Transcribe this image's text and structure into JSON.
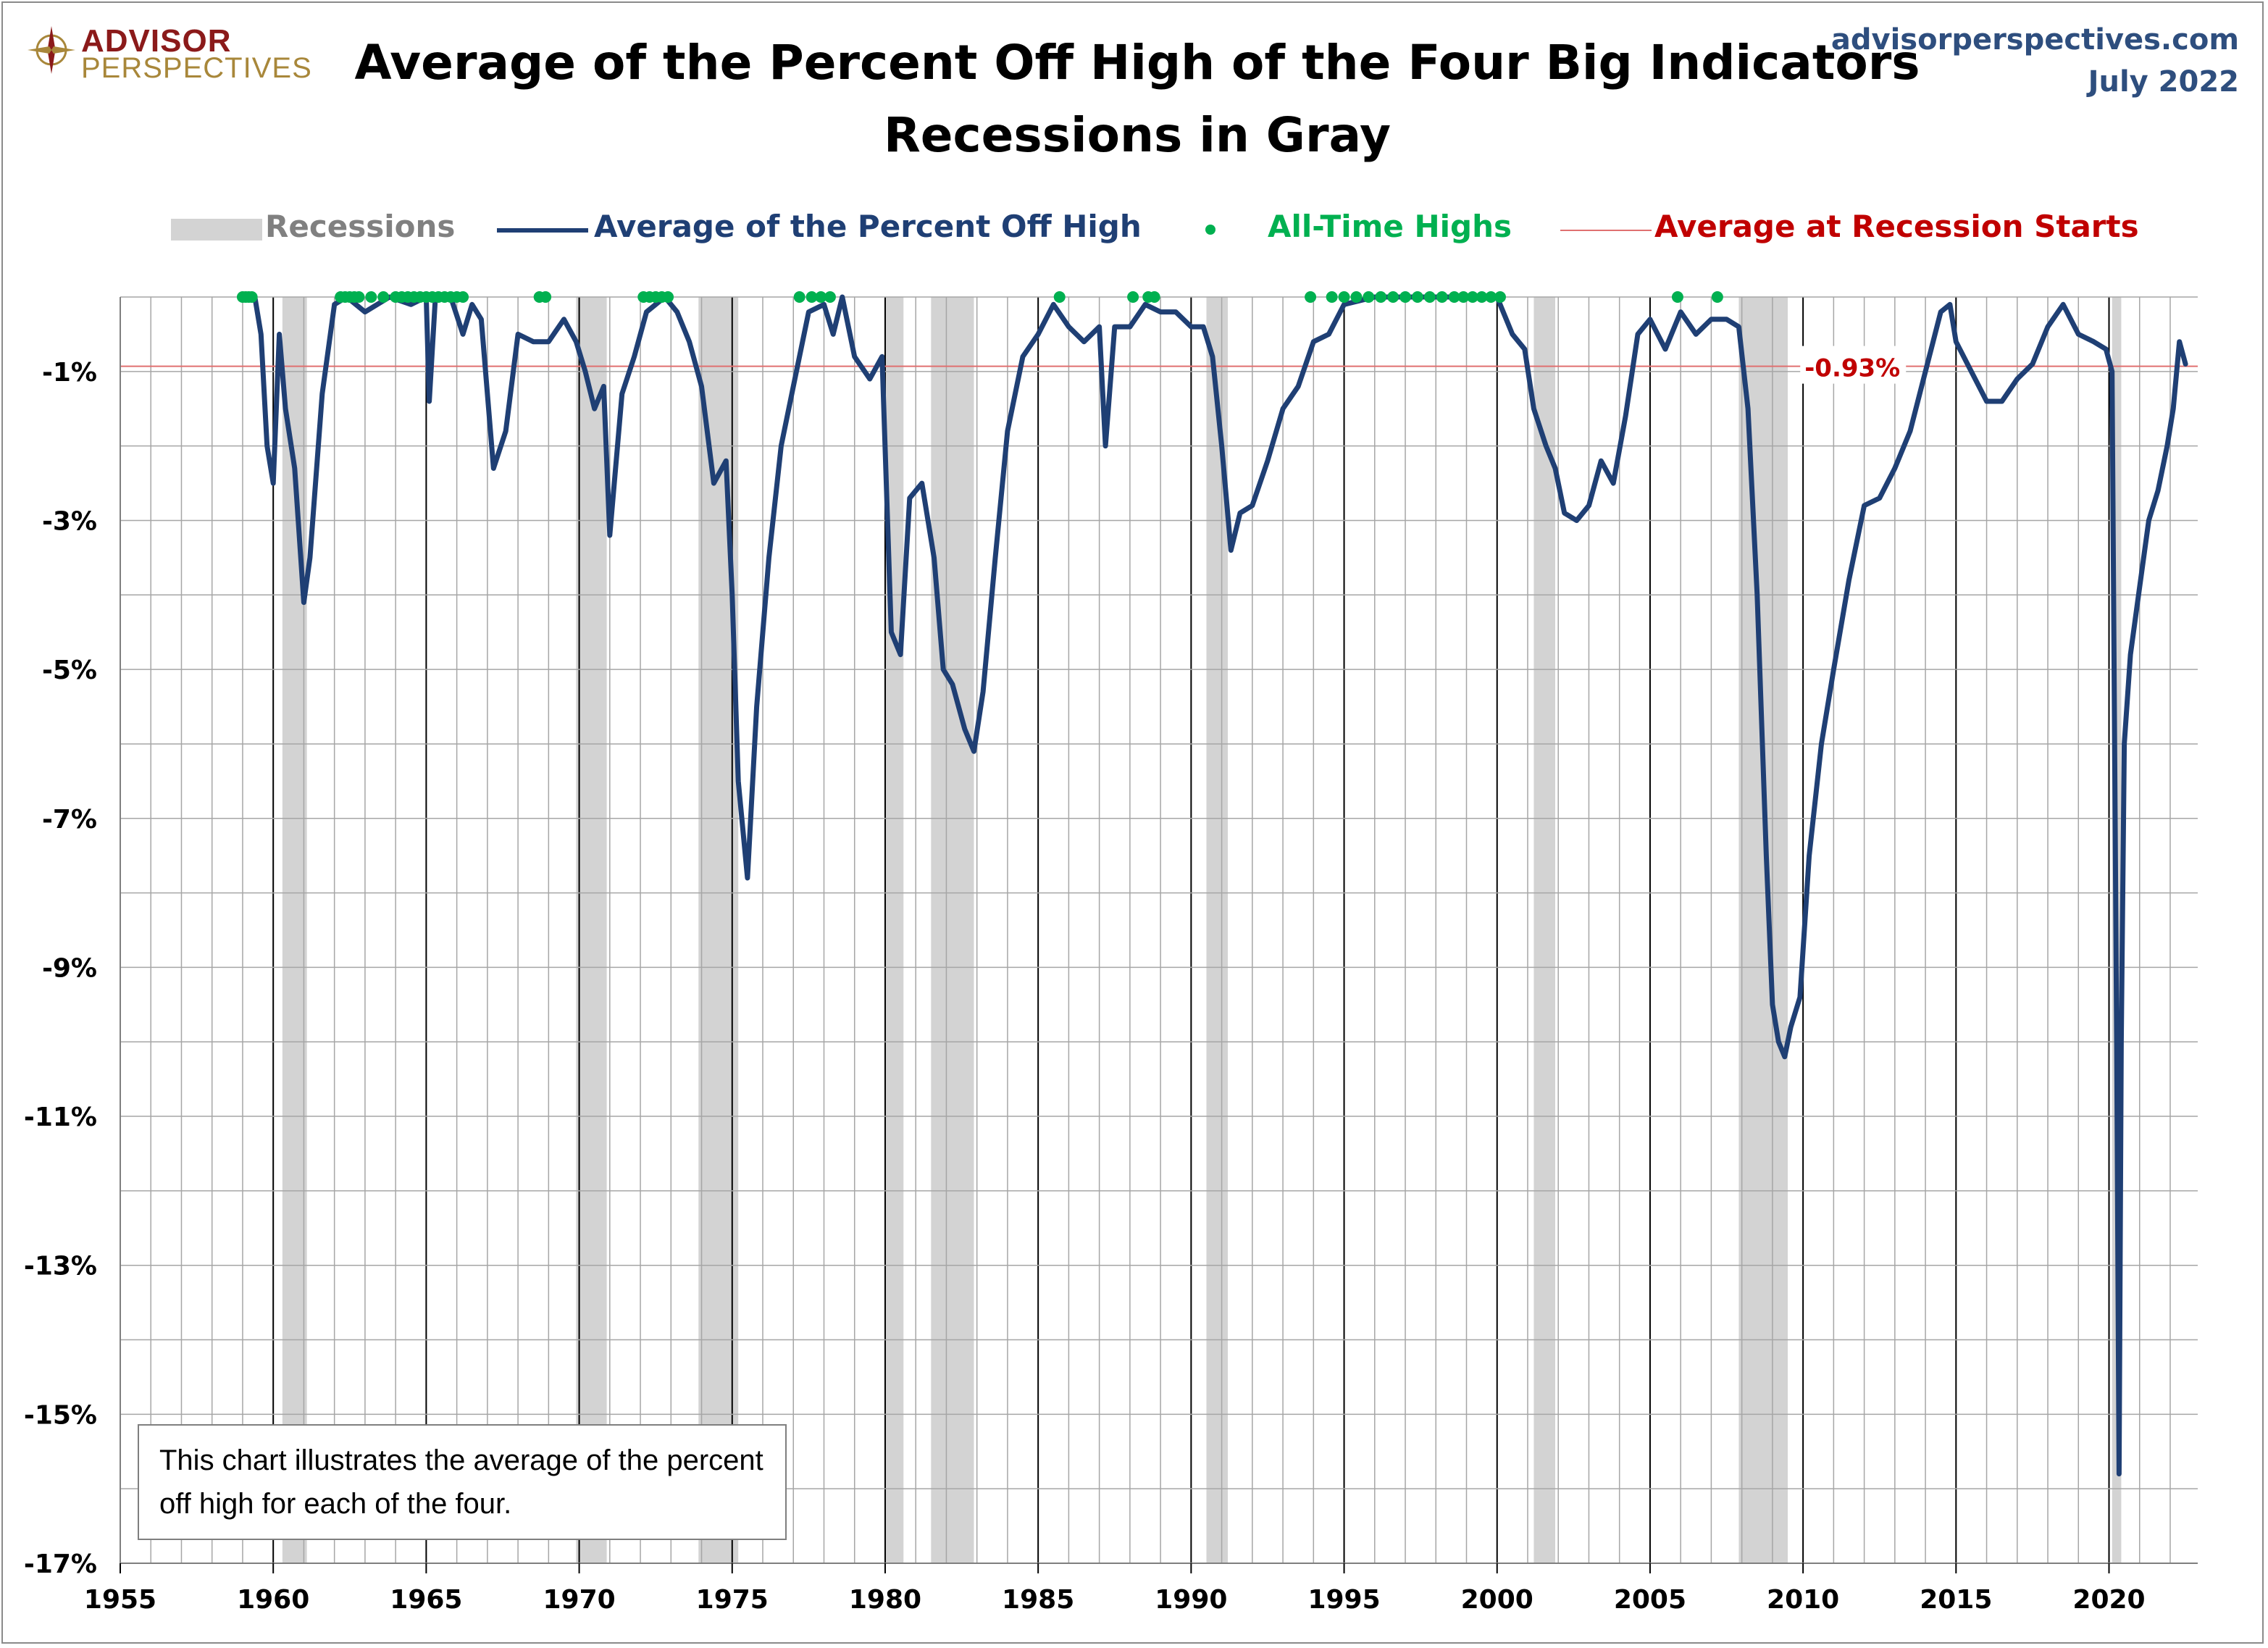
{
  "brand": {
    "logo_top": "ADVISOR",
    "logo_bottom": "PERSPECTIVES",
    "site": "advisorperspectives.com",
    "date": "July 2022"
  },
  "colors": {
    "line": "#1f3f74",
    "recession": "#d3d3d3",
    "highs": "#00b050",
    "avg_line": "#e07070",
    "avg_label": "#c00000",
    "grid": "#a6a6a6"
  },
  "chart_data": {
    "type": "line",
    "title": "Average of the Percent Off High of the Four Big Indicators",
    "subtitle": "Recessions in Gray",
    "xlabel": "",
    "ylabel": "",
    "xlim": [
      1955,
      2022.9
    ],
    "ylim": [
      -17,
      0
    ],
    "y_ticks": [
      -1,
      -3,
      -5,
      -7,
      -9,
      -11,
      -13,
      -15,
      -17
    ],
    "y_tick_labels": [
      "-1%",
      "-3%",
      "-5%",
      "-7%",
      "-9%",
      "-11%",
      "-13%",
      "-15%",
      "-17%"
    ],
    "x_ticks": [
      1955,
      1960,
      1965,
      1970,
      1975,
      1980,
      1985,
      1990,
      1995,
      2000,
      2005,
      2010,
      2015,
      2020
    ],
    "x_tick_labels": [
      "1955",
      "1960",
      "1965",
      "1970",
      "1975",
      "1980",
      "1985",
      "1990",
      "1995",
      "2000",
      "2005",
      "2010",
      "2015",
      "2020"
    ],
    "grid": true,
    "legend_position": "top",
    "legend": [
      "Recessions",
      "Average of the Percent Off High",
      "All-Time Highs",
      "Average at Recession Starts"
    ],
    "recessions": [
      [
        1960.3,
        1961.1
      ],
      [
        1969.9,
        1970.9
      ],
      [
        1973.9,
        1975.2
      ],
      [
        1980.0,
        1980.6
      ],
      [
        1981.5,
        1982.9
      ],
      [
        1990.5,
        1991.2
      ],
      [
        2001.2,
        2001.9
      ],
      [
        2007.9,
        2009.5
      ],
      [
        2020.1,
        2020.4
      ]
    ],
    "average_at_recession_starts": -0.93,
    "average_label": "-0.93%",
    "series": [
      {
        "name": "Average of the Percent Off High",
        "x": [
          1959.0,
          1959.4,
          1959.6,
          1959.8,
          1960.0,
          1960.2,
          1960.4,
          1960.7,
          1961.0,
          1961.2,
          1961.6,
          1962.0,
          1962.4,
          1963.0,
          1963.8,
          1964.5,
          1965.0,
          1965.1,
          1965.3,
          1965.8,
          1966.2,
          1966.5,
          1966.8,
          1967.2,
          1967.6,
          1968.0,
          1968.5,
          1969.0,
          1969.5,
          1969.9,
          1970.2,
          1970.5,
          1970.8,
          1971.0,
          1971.4,
          1971.8,
          1972.2,
          1972.8,
          1973.2,
          1973.6,
          1974.0,
          1974.4,
          1974.8,
          1975.0,
          1975.2,
          1975.5,
          1975.8,
          1976.2,
          1976.6,
          1977.0,
          1977.5,
          1978.0,
          1978.3,
          1978.6,
          1979.0,
          1979.5,
          1979.9,
          1980.2,
          1980.5,
          1980.8,
          1981.2,
          1981.6,
          1981.9,
          1982.2,
          1982.6,
          1982.9,
          1983.2,
          1983.6,
          1984.0,
          1984.5,
          1985.0,
          1985.5,
          1986.0,
          1986.5,
          1987.0,
          1987.2,
          1987.5,
          1988.0,
          1988.5,
          1989.0,
          1989.5,
          1990.0,
          1990.4,
          1990.7,
          1991.0,
          1991.3,
          1991.6,
          1992.0,
          1992.5,
          1993.0,
          1993.5,
          1994.0,
          1994.5,
          1995.0,
          1996.0,
          1997.0,
          1998.0,
          1999.0,
          2000.0,
          2000.5,
          2000.9,
          2001.2,
          2001.6,
          2001.9,
          2002.2,
          2002.6,
          2003.0,
          2003.4,
          2003.8,
          2004.2,
          2004.6,
          2005.0,
          2005.5,
          2006.0,
          2006.5,
          2007.0,
          2007.5,
          2007.9,
          2008.2,
          2008.5,
          2008.8,
          2009.0,
          2009.2,
          2009.4,
          2009.6,
          2009.9,
          2010.2,
          2010.6,
          2011.0,
          2011.5,
          2012.0,
          2012.5,
          2013.0,
          2013.5,
          2014.0,
          2014.5,
          2014.8,
          2015.0,
          2015.5,
          2016.0,
          2016.5,
          2017.0,
          2017.5,
          2018.0,
          2018.5,
          2019.0,
          2019.5,
          2019.9,
          2020.1,
          2020.25,
          2020.33,
          2020.4,
          2020.5,
          2020.7,
          2021.0,
          2021.3,
          2021.6,
          2021.9,
          2022.1,
          2022.3,
          2022.5
        ],
        "y": [
          0,
          0,
          -0.5,
          -2.0,
          -2.5,
          -0.5,
          -1.5,
          -2.3,
          -4.1,
          -3.5,
          -1.3,
          -0.1,
          0,
          -0.2,
          0,
          -0.1,
          0,
          -1.4,
          0,
          0,
          -0.5,
          -0.1,
          -0.3,
          -2.3,
          -1.8,
          -0.5,
          -0.6,
          -0.6,
          -0.3,
          -0.6,
          -1.0,
          -1.5,
          -1.2,
          -3.2,
          -1.3,
          -0.8,
          -0.2,
          0,
          -0.2,
          -0.6,
          -1.2,
          -2.5,
          -2.2,
          -4.0,
          -6.5,
          -7.8,
          -5.5,
          -3.5,
          -2.0,
          -1.2,
          -0.2,
          -0.1,
          -0.5,
          0,
          -0.8,
          -1.1,
          -0.8,
          -4.5,
          -4.8,
          -2.7,
          -2.5,
          -3.5,
          -5.0,
          -5.2,
          -5.8,
          -6.1,
          -5.3,
          -3.5,
          -1.8,
          -0.8,
          -0.5,
          -0.1,
          -0.4,
          -0.6,
          -0.4,
          -2.0,
          -0.4,
          -0.4,
          -0.1,
          -0.2,
          -0.2,
          -0.4,
          -0.4,
          -0.8,
          -2.0,
          -3.4,
          -2.9,
          -2.8,
          -2.2,
          -1.5,
          -1.2,
          -0.6,
          -0.5,
          -0.1,
          0,
          0,
          0,
          0,
          0,
          -0.5,
          -0.7,
          -1.5,
          -2.0,
          -2.3,
          -2.9,
          -3.0,
          -2.8,
          -2.2,
          -2.5,
          -1.6,
          -0.5,
          -0.3,
          -0.7,
          -0.2,
          -0.5,
          -0.3,
          -0.3,
          -0.4,
          -1.5,
          -4.0,
          -7.5,
          -9.5,
          -10.0,
          -10.2,
          -9.8,
          -9.4,
          -7.5,
          -6.0,
          -5.0,
          -3.8,
          -2.8,
          -2.7,
          -2.3,
          -1.8,
          -1.0,
          -0.2,
          -0.1,
          -0.6,
          -1.0,
          -1.4,
          -1.4,
          -1.1,
          -0.9,
          -0.4,
          -0.1,
          -0.5,
          -0.6,
          -0.7,
          -1.0,
          -10.0,
          -15.8,
          -10.0,
          -6.0,
          -4.8,
          -3.9,
          -3.0,
          -2.6,
          -2.0,
          -1.5,
          -0.6,
          -0.9
        ]
      },
      {
        "name": "All-Time Highs",
        "x": [
          1959.0,
          1959.1,
          1959.2,
          1959.3,
          1962.2,
          1962.35,
          1962.5,
          1962.65,
          1962.8,
          1963.2,
          1963.6,
          1964.0,
          1964.2,
          1964.4,
          1964.6,
          1964.8,
          1965.0,
          1965.2,
          1965.4,
          1965.6,
          1965.8,
          1966.0,
          1966.2,
          1968.7,
          1968.9,
          1972.1,
          1972.3,
          1972.5,
          1972.7,
          1972.9,
          1977.2,
          1977.6,
          1977.9,
          1978.2,
          1985.7,
          1988.1,
          1988.6,
          1988.8,
          1993.9,
          1994.6,
          1995.0,
          1995.4,
          1995.8,
          1996.2,
          1996.6,
          1997.0,
          1997.4,
          1997.8,
          1998.2,
          1998.6,
          1998.9,
          1999.2,
          1999.5,
          1999.8,
          2000.1,
          2005.9,
          2007.2
        ],
        "y": [
          0,
          0,
          0,
          0,
          0,
          0,
          0,
          0,
          0,
          0,
          0,
          0,
          0,
          0,
          0,
          0,
          0,
          0,
          0,
          0,
          0,
          0,
          0,
          0,
          0,
          0,
          0,
          0,
          0,
          0,
          0,
          0,
          0,
          0,
          0,
          0,
          0,
          0,
          0,
          0,
          0,
          0,
          0,
          0,
          0,
          0,
          0,
          0,
          0,
          0,
          0,
          0,
          0,
          0,
          0,
          0,
          0
        ]
      }
    ],
    "note": "This chart illustrates the average of the percent off high for each of the four."
  }
}
